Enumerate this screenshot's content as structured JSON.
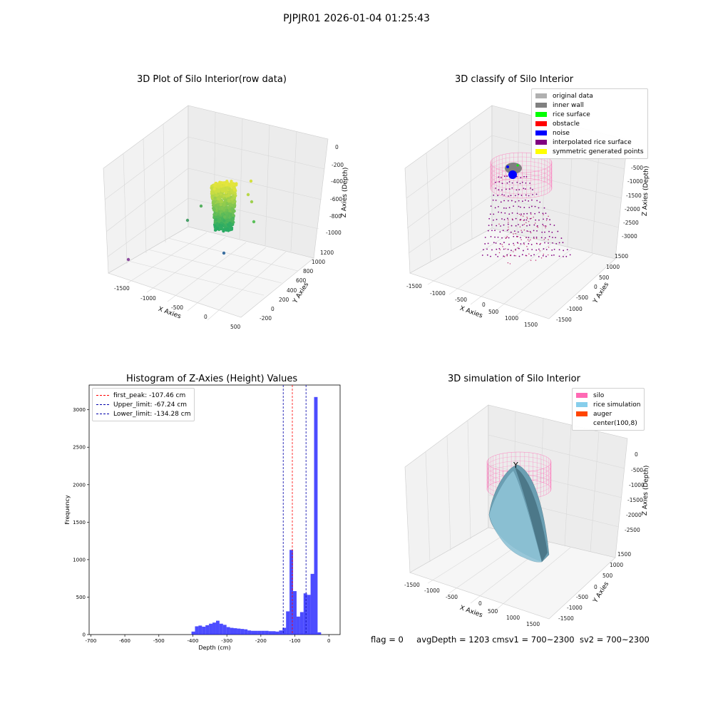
{
  "suptitle": "PJPJR01 2026-01-04 01:25:43",
  "panels": {
    "raw": {
      "title": "3D Plot of Silo Interior(row data)",
      "xlabel": "X Axies",
      "ylabel": "Y Axies",
      "zlabel": "Z Axies (Depth)",
      "xticks": [
        "-1500",
        "-1000",
        "-500",
        "0",
        "500"
      ],
      "yticks": [
        "-200",
        "0",
        "200",
        "400",
        "600",
        "800",
        "1000",
        "1200"
      ],
      "zticks": [
        "0",
        "-200",
        "-400",
        "-600",
        "-800",
        "-1000"
      ]
    },
    "classify": {
      "title": "3D classify of Silo Interior",
      "xlabel": "X Axies",
      "ylabel": "Y Axies",
      "zlabel": "Z Axies (Depth)",
      "xticks": [
        "-1500",
        "-1000",
        "-500",
        "0",
        "500",
        "1000",
        "1500"
      ],
      "yticks": [
        "-1500",
        "-1000",
        "-500",
        "0",
        "500",
        "1000",
        "1500"
      ],
      "zticks": [
        "0",
        "-500",
        "-1000",
        "-1500",
        "-2000",
        "-2500",
        "-3000"
      ],
      "legend": [
        {
          "label": "original data",
          "color": "#b0b0b0"
        },
        {
          "label": "inner wall",
          "color": "#808080"
        },
        {
          "label": "rice surface",
          "color": "#00ff00"
        },
        {
          "label": "obstacle",
          "color": "#ff0000"
        },
        {
          "label": "noise",
          "color": "#0000ff"
        },
        {
          "label": "interpolated rice surface",
          "color": "#800080"
        },
        {
          "label": "symmetric generated points",
          "color": "#ffff00"
        }
      ]
    },
    "simulation": {
      "title": "3D simulation of Silo Interior",
      "xlabel": "X Axies",
      "ylabel": "Y Axies",
      "zlabel": "Z Axies (Depth)",
      "xticks": [
        "-1500",
        "-1000",
        "-500",
        "0",
        "500",
        "1000",
        "1500"
      ],
      "yticks": [
        "-1500",
        "-1000",
        "-500",
        "0",
        "500",
        "1000",
        "1500"
      ],
      "zticks": [
        "0",
        "-500",
        "-1000",
        "-1500",
        "-2000",
        "-2500"
      ],
      "legend": [
        {
          "label": "silo",
          "color": "#ff69b4"
        },
        {
          "label": "rice simulation",
          "color": "#87ceeb"
        },
        {
          "label": "auger",
          "color": "#ff4500"
        },
        {
          "label": "center(100,8)",
          "color": "#ffffff"
        }
      ]
    }
  },
  "footer": {
    "flag": "flag = 0",
    "avg": "avgDepth = 1203 cmsv1 = 700~2300",
    "sv2": "sv2 = 700~2300"
  },
  "chart_data": [
    {
      "type": "bar",
      "title": "Histogram of Z-Axies (Height) Values",
      "xlabel": "Depth (cm)",
      "ylabel": "Frequency",
      "xlim": [
        -705,
        33
      ],
      "ylim": [
        0,
        3330
      ],
      "bar_color": "#0000ff",
      "bin_width": 10.3,
      "bins": [
        {
          "x": -404,
          "y": 40
        },
        {
          "x": -393.7,
          "y": 110
        },
        {
          "x": -383.4,
          "y": 120
        },
        {
          "x": -373.1,
          "y": 105
        },
        {
          "x": -362.8,
          "y": 125
        },
        {
          "x": -352.5,
          "y": 145
        },
        {
          "x": -342.2,
          "y": 160
        },
        {
          "x": -331.9,
          "y": 185
        },
        {
          "x": -321.6,
          "y": 145
        },
        {
          "x": -311.3,
          "y": 130
        },
        {
          "x": -301,
          "y": 100
        },
        {
          "x": -290.7,
          "y": 90
        },
        {
          "x": -280.4,
          "y": 85
        },
        {
          "x": -270.1,
          "y": 80
        },
        {
          "x": -259.8,
          "y": 75
        },
        {
          "x": -249.5,
          "y": 70
        },
        {
          "x": -239.2,
          "y": 55
        },
        {
          "x": -228.9,
          "y": 50
        },
        {
          "x": -218.6,
          "y": 50
        },
        {
          "x": -208.3,
          "y": 50
        },
        {
          "x": -198,
          "y": 50
        },
        {
          "x": -187.7,
          "y": 50
        },
        {
          "x": -177.4,
          "y": 45
        },
        {
          "x": -167.1,
          "y": 45
        },
        {
          "x": -156.8,
          "y": 40
        },
        {
          "x": -146.5,
          "y": 55
        },
        {
          "x": -136.2,
          "y": 90
        },
        {
          "x": -125.9,
          "y": 310
        },
        {
          "x": -115.6,
          "y": 1130
        },
        {
          "x": -105.3,
          "y": 580
        },
        {
          "x": -95,
          "y": 240
        },
        {
          "x": -84.7,
          "y": 300
        },
        {
          "x": -74.4,
          "y": 550
        },
        {
          "x": -64.1,
          "y": 530
        },
        {
          "x": -53.8,
          "y": 810
        },
        {
          "x": -43.5,
          "y": 3170
        },
        {
          "x": -33.2,
          "y": 30
        }
      ],
      "xticks": [
        -700,
        -600,
        -500,
        -400,
        -300,
        -200,
        -100,
        0
      ],
      "yticks": [
        0,
        500,
        1000,
        1500,
        2000,
        2500,
        3000
      ],
      "vlines": [
        {
          "label": "first_peak: -107.46 cm",
          "x": -107.46,
          "color": "#ff0000"
        },
        {
          "label": "Upper_limit: -67.24 cm",
          "x": -67.24,
          "color": "#0000aa"
        },
        {
          "label": "Lower_limit: -134.28 cm",
          "x": -134.28,
          "color": "#0000aa"
        }
      ],
      "legend_position": "top-left"
    }
  ]
}
